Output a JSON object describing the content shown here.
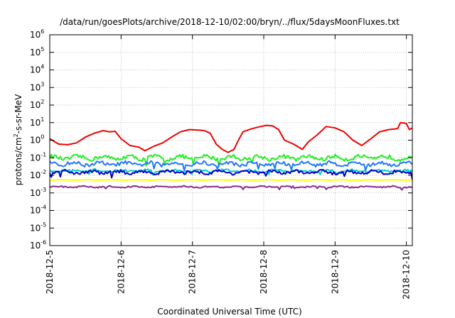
{
  "chart_data": {
    "type": "line",
    "title": "/data/run/goesPlots/archive/2018-12-10/02:00/bryn/../flux/5daysMoonFluxes.txt",
    "xlabel": "Coordinated Universal Time (UTC)",
    "ylabel": {
      "base": "protons/cm",
      "exp": "2",
      "rest": "-s-sr-MeV"
    },
    "y_scale": "log",
    "ylim": [
      1e-06,
      1000000.0
    ],
    "y_ticks": [
      {
        "value": 1e-06,
        "base": "10",
        "exp": "-6"
      },
      {
        "value": 1e-05,
        "base": "10",
        "exp": "-5"
      },
      {
        "value": 0.0001,
        "base": "10",
        "exp": "-4"
      },
      {
        "value": 0.001,
        "base": "10",
        "exp": "-3"
      },
      {
        "value": 0.01,
        "base": "10",
        "exp": "-2"
      },
      {
        "value": 0.1,
        "base": "10",
        "exp": "-1"
      },
      {
        "value": 1,
        "base": "10",
        "exp": "0"
      },
      {
        "value": 10,
        "base": "10",
        "exp": "1"
      },
      {
        "value": 100,
        "base": "10",
        "exp": "2"
      },
      {
        "value": 1000,
        "base": "10",
        "exp": "3"
      },
      {
        "value": 10000,
        "base": "10",
        "exp": "4"
      },
      {
        "value": 100000,
        "base": "10",
        "exp": "5"
      },
      {
        "value": 1000000,
        "base": "10",
        "exp": "6"
      }
    ],
    "xlim": [
      "2018-12-05T00:00",
      "2018-12-10T02:00"
    ],
    "x_ticks": [
      {
        "value": "2018-12-05T00:00",
        "label": "2018-12-5"
      },
      {
        "value": "2018-12-06T00:00",
        "label": "2018-12-6"
      },
      {
        "value": "2018-12-07T00:00",
        "label": "2018-12-7"
      },
      {
        "value": "2018-12-08T00:00",
        "label": "2018-12-8"
      },
      {
        "value": "2018-12-09T00:00",
        "label": "2018-12-9"
      },
      {
        "value": "2018-12-10T00:00",
        "label": "2018-12-10"
      }
    ],
    "grid": true,
    "legend": "none",
    "series": [
      {
        "color": "#ee0000",
        "points": [
          [
            "2018-12-05T00:00",
            1.2
          ],
          [
            "2018-12-05T03:00",
            0.6
          ],
          [
            "2018-12-05T06:00",
            0.55
          ],
          [
            "2018-12-05T09:00",
            0.7
          ],
          [
            "2018-12-05T12:00",
            1.5
          ],
          [
            "2018-12-05T15:00",
            2.5
          ],
          [
            "2018-12-05T18:00",
            3.5
          ],
          [
            "2018-12-05T20:00",
            3.0
          ],
          [
            "2018-12-05T22:00",
            3.2
          ],
          [
            "2018-12-06T00:00",
            1.2
          ],
          [
            "2018-12-06T03:00",
            0.5
          ],
          [
            "2018-12-06T06:00",
            0.4
          ],
          [
            "2018-12-06T08:00",
            0.25
          ],
          [
            "2018-12-06T11:00",
            0.45
          ],
          [
            "2018-12-06T14:00",
            0.7
          ],
          [
            "2018-12-06T17:00",
            1.5
          ],
          [
            "2018-12-06T20:00",
            3.0
          ],
          [
            "2018-12-06T23:00",
            4.0
          ],
          [
            "2018-12-07T02:00",
            3.8
          ],
          [
            "2018-12-07T04:00",
            3.5
          ],
          [
            "2018-12-07T06:00",
            2.5
          ],
          [
            "2018-12-07T08:00",
            0.6
          ],
          [
            "2018-12-07T10:00",
            0.3
          ],
          [
            "2018-12-07T12:00",
            0.2
          ],
          [
            "2018-12-07T14:00",
            0.3
          ],
          [
            "2018-12-07T15:00",
            0.7
          ],
          [
            "2018-12-07T17:00",
            3.0
          ],
          [
            "2018-12-07T20:00",
            4.5
          ],
          [
            "2018-12-07T23:00",
            6.0
          ],
          [
            "2018-12-08T01:00",
            7.0
          ],
          [
            "2018-12-08T03:00",
            6.5
          ],
          [
            "2018-12-08T05:00",
            4.0
          ],
          [
            "2018-12-08T07:00",
            1.0
          ],
          [
            "2018-12-08T10:00",
            0.6
          ],
          [
            "2018-12-08T13:00",
            0.3
          ],
          [
            "2018-12-08T15:00",
            0.8
          ],
          [
            "2018-12-08T18:00",
            2.0
          ],
          [
            "2018-12-08T21:00",
            6.0
          ],
          [
            "2018-12-09T00:00",
            5.0
          ],
          [
            "2018-12-09T03:00",
            3.0
          ],
          [
            "2018-12-09T06:00",
            1.0
          ],
          [
            "2018-12-09T09:00",
            0.5
          ],
          [
            "2018-12-09T12:00",
            1.2
          ],
          [
            "2018-12-09T15:00",
            3.0
          ],
          [
            "2018-12-09T18:00",
            4.0
          ],
          [
            "2018-12-09T21:00",
            4.5
          ],
          [
            "2018-12-09T22:00",
            10.0
          ],
          [
            "2018-12-10T00:00",
            9.0
          ],
          [
            "2018-12-10T01:00",
            4.0
          ],
          [
            "2018-12-10T02:00",
            5.0
          ]
        ]
      },
      {
        "color": "#22ee22",
        "level": 0.1,
        "spread": 0.45
      },
      {
        "color": "#2277ff",
        "level": 0.045,
        "spread": 0.4
      },
      {
        "color": "#00cccc",
        "level": 0.018,
        "spread": 0.25
      },
      {
        "color": "#0000cc",
        "level": 0.015,
        "spread": 0.35
      },
      {
        "color": "#ffff00",
        "level": 0.0055,
        "spread": 0.05
      },
      {
        "color": "#8b2a8b",
        "level": 0.0022,
        "spread": 0.15
      }
    ]
  }
}
